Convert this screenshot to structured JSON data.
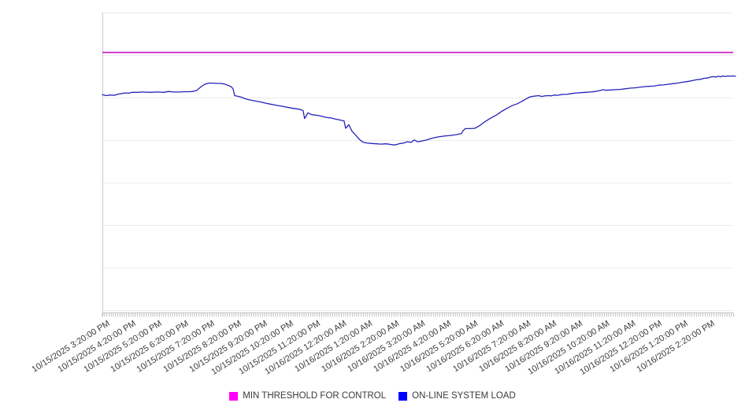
{
  "chart_data": {
    "type": "line",
    "title": "",
    "x_axis": {
      "tick_interval": "1 hour",
      "minor_tick_interval_minutes": 5,
      "label_rotation_deg": -32,
      "span_hours": 24.07,
      "tick_labels": [
        "10/15/2025 3:20:00 PM",
        "10/15/2025 4:20:00 PM",
        "10/15/2025 5:20:00 PM",
        "10/15/2025 6:20:00 PM",
        "10/15/2025 7:20:00 PM",
        "10/15/2025 8:20:00 PM",
        "10/15/2025 9:20:00 PM",
        "10/15/2025 10:20:00 PM",
        "10/15/2025 11:20:00 PM",
        "10/16/2025 12:20:00 AM",
        "10/16/2025 1:20:00 AM",
        "10/16/2025 2:20:00 AM",
        "10/16/2025 3:20:00 AM",
        "10/16/2025 4:20:00 AM",
        "10/16/2025 5:20:00 AM",
        "10/16/2025 6:20:00 AM",
        "10/16/2025 7:20:00 AM",
        "10/16/2025 8:20:00 AM",
        "10/16/2025 9:20:00 AM",
        "10/16/2025 10:20:00 AM",
        "10/16/2025 11:20:00 AM",
        "10/16/2025 12:20:00 PM",
        "10/16/2025 1:20:00 PM",
        "10/16/2025 2:20:00 PM"
      ]
    },
    "y_axis": {
      "labels_visible": false,
      "unit": "percent of plot height (no numeric labels shown in chart)",
      "range": [
        0,
        100
      ],
      "gridlines": 8
    },
    "series": [
      {
        "name": "MIN THRESHOLD FOR CONTROL",
        "type": "threshold-line",
        "color": "#c922c9",
        "legend_color": "#ff00ff",
        "value": 86.6
      },
      {
        "name": "ON-LINE SYSTEM LOAD",
        "type": "line",
        "color": "#2323b8",
        "legend_color": "#0000ff",
        "points": [
          [
            0.0,
            72.4
          ],
          [
            0.15,
            72.1
          ],
          [
            0.3,
            72.3
          ],
          [
            0.45,
            72.2
          ],
          [
            0.6,
            72.6
          ],
          [
            0.75,
            72.8
          ],
          [
            0.84,
            73.0
          ],
          [
            0.99,
            72.9
          ],
          [
            1.14,
            73.2
          ],
          [
            1.35,
            73.2
          ],
          [
            1.5,
            73.3
          ],
          [
            1.8,
            73.2
          ],
          [
            2.1,
            73.3
          ],
          [
            2.34,
            73.2
          ],
          [
            2.51,
            73.5
          ],
          [
            2.69,
            73.3
          ],
          [
            2.93,
            73.3
          ],
          [
            3.14,
            73.4
          ],
          [
            3.32,
            73.4
          ],
          [
            3.44,
            73.5
          ],
          [
            3.59,
            73.9
          ],
          [
            3.74,
            75.0
          ],
          [
            3.89,
            75.9
          ],
          [
            4.04,
            76.3
          ],
          [
            4.19,
            76.3
          ],
          [
            4.34,
            76.2
          ],
          [
            4.49,
            76.2
          ],
          [
            4.64,
            76.0
          ],
          [
            4.79,
            75.5
          ],
          [
            4.91,
            75.0
          ],
          [
            4.97,
            74.3
          ],
          [
            5.03,
            72.1
          ],
          [
            5.24,
            71.7
          ],
          [
            5.48,
            70.9
          ],
          [
            5.69,
            70.5
          ],
          [
            5.99,
            70.0
          ],
          [
            6.29,
            69.4
          ],
          [
            6.59,
            68.9
          ],
          [
            6.89,
            68.4
          ],
          [
            7.19,
            67.9
          ],
          [
            7.49,
            67.5
          ],
          [
            7.63,
            67.1
          ],
          [
            7.69,
            64.4
          ],
          [
            7.81,
            66.3
          ],
          [
            7.96,
            65.7
          ],
          [
            8.14,
            65.5
          ],
          [
            8.32,
            65.2
          ],
          [
            8.5,
            64.8
          ],
          [
            8.68,
            64.6
          ],
          [
            8.86,
            64.2
          ],
          [
            9.04,
            63.9
          ],
          [
            9.19,
            63.6
          ],
          [
            9.25,
            61.1
          ],
          [
            9.37,
            62.3
          ],
          [
            9.49,
            60.1
          ],
          [
            9.64,
            58.7
          ],
          [
            9.76,
            57.5
          ],
          [
            9.88,
            56.6
          ],
          [
            10.03,
            56.2
          ],
          [
            10.24,
            56.0
          ],
          [
            10.42,
            55.9
          ],
          [
            10.6,
            55.8
          ],
          [
            10.78,
            55.9
          ],
          [
            10.96,
            55.7
          ],
          [
            11.08,
            55.5
          ],
          [
            11.2,
            55.7
          ],
          [
            11.32,
            56.0
          ],
          [
            11.44,
            56.1
          ],
          [
            11.59,
            56.6
          ],
          [
            11.74,
            56.4
          ],
          [
            11.86,
            57.2
          ],
          [
            11.98,
            56.6
          ],
          [
            12.13,
            56.8
          ],
          [
            12.28,
            57.1
          ],
          [
            12.51,
            57.7
          ],
          [
            12.75,
            58.2
          ],
          [
            12.99,
            58.5
          ],
          [
            13.23,
            58.7
          ],
          [
            13.47,
            59.0
          ],
          [
            13.65,
            59.3
          ],
          [
            13.71,
            60.3
          ],
          [
            13.8,
            61.0
          ],
          [
            13.98,
            61.0
          ],
          [
            14.16,
            61.1
          ],
          [
            14.34,
            62.0
          ],
          [
            14.52,
            63.2
          ],
          [
            14.7,
            64.2
          ],
          [
            14.88,
            65.1
          ],
          [
            15.0,
            65.7
          ],
          [
            15.18,
            66.8
          ],
          [
            15.36,
            67.7
          ],
          [
            15.57,
            68.7
          ],
          [
            15.78,
            69.4
          ],
          [
            15.96,
            70.2
          ],
          [
            16.11,
            71.0
          ],
          [
            16.26,
            71.7
          ],
          [
            16.41,
            71.9
          ],
          [
            16.59,
            72.1
          ],
          [
            16.71,
            71.8
          ],
          [
            16.83,
            72.0
          ],
          [
            16.95,
            72.1
          ],
          [
            17.07,
            72.0
          ],
          [
            17.19,
            72.3
          ],
          [
            17.31,
            72.2
          ],
          [
            17.43,
            72.4
          ],
          [
            17.54,
            72.5
          ],
          [
            17.66,
            72.5
          ],
          [
            17.84,
            72.8
          ],
          [
            18.02,
            73.0
          ],
          [
            18.2,
            73.1
          ],
          [
            18.38,
            73.2
          ],
          [
            18.56,
            73.3
          ],
          [
            18.74,
            73.5
          ],
          [
            18.92,
            73.8
          ],
          [
            19.04,
            74.1
          ],
          [
            19.16,
            73.9
          ],
          [
            19.34,
            74.0
          ],
          [
            19.52,
            74.1
          ],
          [
            19.7,
            74.2
          ],
          [
            19.88,
            74.4
          ],
          [
            20.06,
            74.6
          ],
          [
            20.24,
            74.7
          ],
          [
            20.42,
            74.9
          ],
          [
            20.6,
            75.1
          ],
          [
            20.78,
            75.2
          ],
          [
            20.96,
            75.3
          ],
          [
            21.14,
            75.6
          ],
          [
            21.32,
            75.7
          ],
          [
            21.5,
            75.9
          ],
          [
            21.68,
            76.1
          ],
          [
            21.86,
            76.3
          ],
          [
            22.04,
            76.6
          ],
          [
            22.22,
            76.8
          ],
          [
            22.4,
            77.1
          ],
          [
            22.57,
            77.4
          ],
          [
            22.75,
            77.6
          ],
          [
            22.87,
            77.9
          ],
          [
            22.99,
            78.0
          ],
          [
            23.11,
            78.3
          ],
          [
            23.23,
            78.5
          ],
          [
            23.32,
            78.3
          ],
          [
            23.41,
            78.6
          ],
          [
            23.5,
            78.4
          ],
          [
            23.59,
            78.7
          ],
          [
            23.68,
            78.5
          ],
          [
            23.77,
            78.7
          ],
          [
            23.86,
            78.6
          ],
          [
            23.95,
            78.7
          ],
          [
            24.07,
            78.6
          ]
        ]
      }
    ],
    "legend_position": "bottom-center"
  },
  "legend": {
    "items": [
      {
        "label": "MIN THRESHOLD FOR CONTROL",
        "color": "#ff00ff"
      },
      {
        "label": "ON-LINE SYSTEM LOAD",
        "color": "#0000ff"
      }
    ]
  },
  "colors": {
    "background": "#ffffff",
    "gridline": "#ececec",
    "axis": "#c8c8c8",
    "minor_tick": "#aaaaaa",
    "label_text": "#3a3a3a"
  }
}
